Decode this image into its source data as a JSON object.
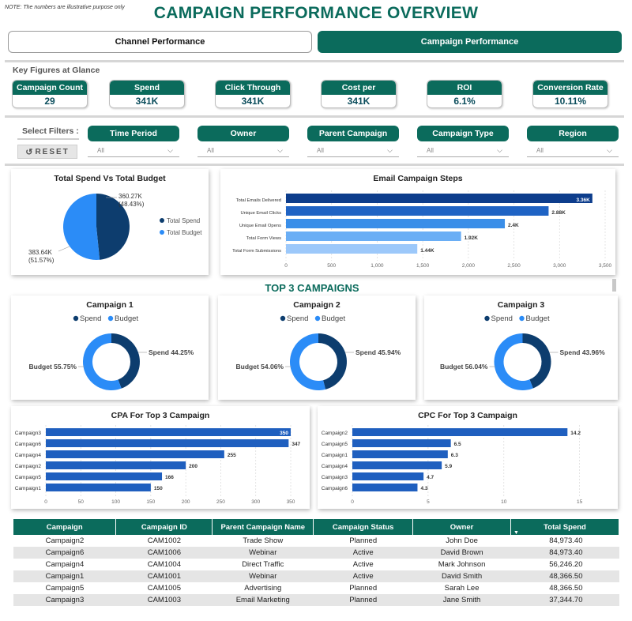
{
  "note": "NOTE: The numbers are illustrative purpose only",
  "title": "CAMPAIGN PERFORMANCE OVERVIEW",
  "tabs": [
    {
      "label": "Channel Performance",
      "active": false
    },
    {
      "label": "Campaign Performance",
      "active": true
    }
  ],
  "key_figures": {
    "title": "Key Figures at Glance",
    "items": [
      {
        "label": "Campaign Count",
        "value": "29"
      },
      {
        "label": "Spend",
        "value": "341K"
      },
      {
        "label": "Click Through Rate",
        "value": "341K"
      },
      {
        "label": "Cost per Acquisition",
        "value": "341K"
      },
      {
        "label": "ROI",
        "value": "6.1%"
      },
      {
        "label": "Conversion Rate",
        "value": "10.11%"
      }
    ]
  },
  "filters": {
    "label": "Select Filters :",
    "reset_label": "RESET",
    "items": [
      {
        "label": "Time Period",
        "value": "All"
      },
      {
        "label": "Owner",
        "value": "All"
      },
      {
        "label": "Parent Campaign",
        "value": "All"
      },
      {
        "label": "Campaign Type",
        "value": "All"
      },
      {
        "label": "Region",
        "value": "All"
      }
    ]
  },
  "colors": {
    "brand": "#0b6b5c",
    "spend": "#0d3d6e",
    "budget": "#2b8cf7",
    "bar": "#1f5fbf"
  },
  "chart_data": [
    {
      "type": "pie",
      "title": "Total Spend Vs Total Budget",
      "legend": "right",
      "slices": [
        {
          "name": "Total Spend",
          "value": 360.27,
          "value_label": "360.27K",
          "pct_label": "(48.43%)",
          "color": "#0d3d6e"
        },
        {
          "name": "Total Budget",
          "value": 383.64,
          "value_label": "383.64K",
          "pct_label": "(51.57%)",
          "color": "#2b8cf7"
        }
      ]
    },
    {
      "type": "bar",
      "orientation": "horizontal",
      "title": "Email Campaign Steps",
      "categories": [
        "Total Emails Delivered",
        "Unique Email Clicks",
        "Unique Email Opens",
        "Total Form Views",
        "Total Form Submissions"
      ],
      "values": [
        3360,
        2880,
        2400,
        1920,
        1440
      ],
      "labels": [
        "3.36K",
        "2.88K",
        "2.4K",
        "1.92K",
        "1.44K"
      ],
      "colors": [
        "#0d3d8c",
        "#1f63c4",
        "#3a8ee8",
        "#6aaef5",
        "#9cc8fa"
      ],
      "xlim": [
        0,
        3500
      ],
      "ticks": [
        "0",
        "500",
        "1,000",
        "1,500",
        "2,000",
        "2,500",
        "3,000",
        "3,500"
      ],
      "grid": true
    },
    {
      "type": "pie",
      "title": "Campaign 1",
      "legend": "top",
      "slices": [
        {
          "name": "Spend",
          "value": 44.25,
          "label": "Spend 44.25%",
          "color": "#0d3d6e"
        },
        {
          "name": "Budget",
          "value": 55.75,
          "label": "Budget 55.75%",
          "color": "#2b8cf7"
        }
      ]
    },
    {
      "type": "pie",
      "title": "Campaign 2",
      "legend": "top",
      "slices": [
        {
          "name": "Spend",
          "value": 45.94,
          "label": "Spend 45.94%",
          "color": "#0d3d6e"
        },
        {
          "name": "Budget",
          "value": 54.06,
          "label": "Budget 54.06%",
          "color": "#2b8cf7"
        }
      ]
    },
    {
      "type": "pie",
      "title": "Campaign 3",
      "legend": "top",
      "slices": [
        {
          "name": "Spend",
          "value": 43.96,
          "label": "Spend 43.96%",
          "color": "#0d3d6e"
        },
        {
          "name": "Budget",
          "value": 56.04,
          "label": "Budget 56.04%",
          "color": "#2b8cf7"
        }
      ]
    },
    {
      "type": "bar",
      "orientation": "horizontal",
      "title": "CPA For Top 3 Campaign",
      "categories": [
        "Campaign3",
        "Campaign6",
        "Campaign4",
        "Campaign2",
        "Campaign5",
        "Campaign1"
      ],
      "values": [
        350,
        347,
        255,
        200,
        166,
        150
      ],
      "labels": [
        "350",
        "347",
        "255",
        "200",
        "166",
        "150"
      ],
      "xlim": [
        0,
        350
      ],
      "ticks": [
        "0",
        "50",
        "100",
        "150",
        "200",
        "250",
        "300",
        "350"
      ],
      "grid": true
    },
    {
      "type": "bar",
      "orientation": "horizontal",
      "title": "CPC For Top 3 Campaign",
      "categories": [
        "Campaign2",
        "Campaign5",
        "Campaign1",
        "Campaign4",
        "Campaign3",
        "Campaign6"
      ],
      "values": [
        14.2,
        6.5,
        6.3,
        5.9,
        4.7,
        4.3
      ],
      "labels": [
        "14.2",
        "6.5",
        "6.3",
        "5.9",
        "4.7",
        "4.3"
      ],
      "xlim": [
        0,
        17
      ],
      "ticks": [
        "0",
        "5",
        "10",
        "15"
      ],
      "tick_values": [
        0,
        5,
        10,
        15
      ],
      "grid": true
    }
  ],
  "top3_title": "TOP 3 CAMPAIGNS",
  "table": {
    "headers": [
      "Campaign",
      "Campaign ID",
      "Parent Campaign Name",
      "Campaign Status",
      "Owner",
      "Total Spend"
    ],
    "rows": [
      [
        "Campaign2",
        "CAM1002",
        "Trade Show",
        "Planned",
        "John Doe",
        "84,973.40"
      ],
      [
        "Campaign6",
        "CAM1006",
        "Webinar",
        "Active",
        "David Brown",
        "84,973.40"
      ],
      [
        "Campaign4",
        "CAM1004",
        "Direct Traffic",
        "Active",
        "Mark Johnson",
        "56,246.20"
      ],
      [
        "Campaign1",
        "CAM1001",
        "Webinar",
        "Active",
        "David Smith",
        "48,366.50"
      ],
      [
        "Campaign5",
        "CAM1005",
        "Advertising",
        "Planned",
        "Sarah Lee",
        "48,366.50"
      ],
      [
        "Campaign3",
        "CAM1003",
        "Email Marketing",
        "Planned",
        "Jane Smith",
        "37,344.70"
      ]
    ]
  }
}
